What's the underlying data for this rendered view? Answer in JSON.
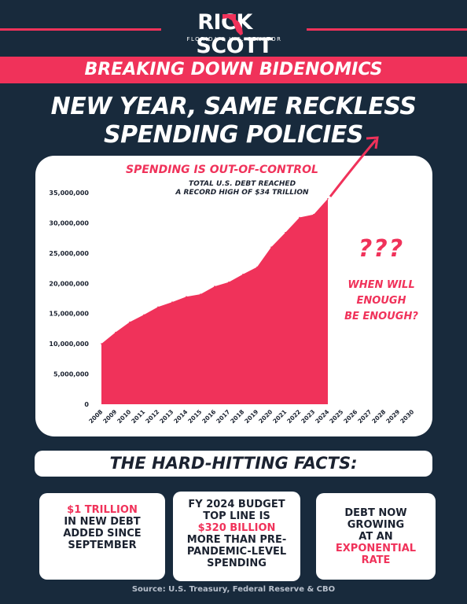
{
  "header": {
    "logo_first": "RICK",
    "logo_last": "SCOTT",
    "logo_sub": "FLORIDA'S U.S. SENATOR",
    "banner": "BREAKING DOWN BIDENOMICS",
    "headline_line1": "NEW YEAR, SAME RECKLESS",
    "headline_line2": "SPENDING POLICIES"
  },
  "chart_data": {
    "type": "area",
    "title": "SPENDING IS OUT-OF-CONTROL",
    "annotation_line1": "TOTAL U.S. DEBT REACHED",
    "annotation_line2": "A RECORD HIGH OF $34 TRILLION",
    "xlabel": "",
    "ylabel": "",
    "ylim": [
      0,
      35000000
    ],
    "yticks": [
      0,
      5000000,
      10000000,
      15000000,
      20000000,
      25000000,
      30000000,
      35000000
    ],
    "ytick_labels": [
      "0",
      "5,000,000",
      "10,000,000",
      "15,000,000",
      "20,000,000",
      "25,000,000",
      "30,000,000",
      "35,000,000"
    ],
    "xticks": [
      "2008",
      "2009",
      "2010",
      "2011",
      "2012",
      "2013",
      "2014",
      "2015",
      "2016",
      "2017",
      "2018",
      "2019",
      "2020",
      "2021",
      "2022",
      "2023",
      "2024",
      "2025",
      "2026",
      "2027",
      "2028",
      "2029",
      "2030"
    ],
    "x": [
      "2008",
      "2009",
      "2010",
      "2011",
      "2012",
      "2013",
      "2014",
      "2015",
      "2016",
      "2017",
      "2018",
      "2019",
      "2020",
      "2021",
      "2022",
      "2023",
      "2024"
    ],
    "values": [
      10000000,
      11900000,
      13600000,
      14800000,
      16100000,
      16900000,
      17800000,
      18200000,
      19500000,
      20200000,
      21500000,
      22700000,
      26000000,
      28400000,
      30900000,
      31400000,
      34000000
    ],
    "color": "#f0325a",
    "grid": false,
    "legend": "none"
  },
  "side": {
    "qqq": "???",
    "when": [
      "WHEN WILL",
      "ENOUGH",
      "BE ENOUGH?"
    ]
  },
  "facts": {
    "title": "THE HARD-HITTING FACTS:",
    "f1": [
      "$1 TRILLION",
      "IN NEW DEBT",
      "ADDED SINCE",
      "SEPTEMBER"
    ],
    "f2": [
      "FY 2024 BUDGET",
      "TOP LINE IS",
      "$320 BILLION",
      "MORE THAN PRE-",
      "PANDEMIC-LEVEL",
      "SPENDING"
    ],
    "f3": [
      "DEBT NOW",
      "GROWING",
      "AT AN",
      "EXPONENTIAL",
      "RATE"
    ]
  },
  "source": "Source: U.S. Treasury, Federal Reserve & CBO",
  "colors": {
    "accent": "#f0325a",
    "navy": "#182a3c",
    "text": "#1b2230"
  }
}
